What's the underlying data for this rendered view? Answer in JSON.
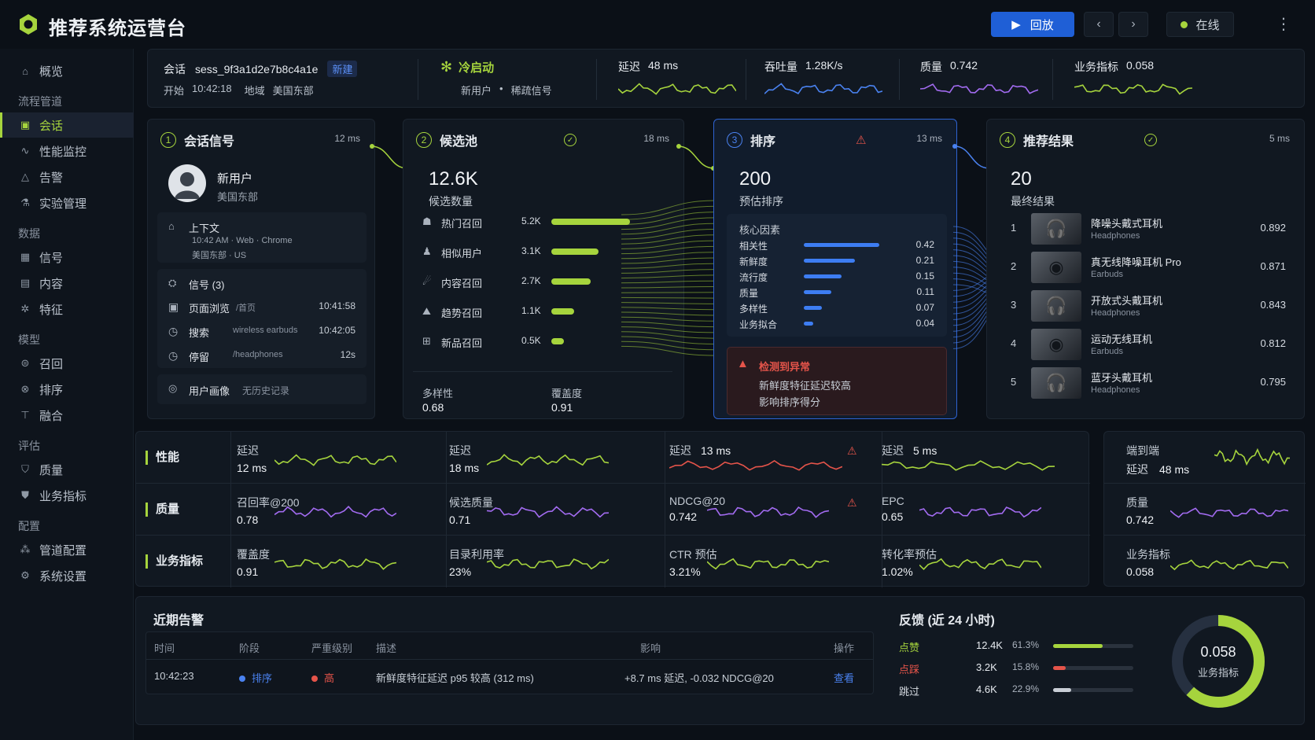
{
  "app": {
    "title": "推荐系统运营台"
  },
  "topbar": {
    "replay_label": "回放",
    "status_label": "在线",
    "status_color": "#a6d43d"
  },
  "sidebar": {
    "items_top": [
      {
        "label": "概览",
        "icon": "home-icon"
      }
    ],
    "groups": [
      {
        "title": "流程管道",
        "items": [
          {
            "label": "会话",
            "icon": "session-icon",
            "active": true
          },
          {
            "label": "性能监控",
            "icon": "pulse-icon"
          },
          {
            "label": "告警",
            "icon": "warning-icon"
          },
          {
            "label": "实验管理",
            "icon": "flask-icon"
          }
        ]
      },
      {
        "title": "数据",
        "items": [
          {
            "label": "信号",
            "icon": "signal-icon"
          },
          {
            "label": "内容",
            "icon": "document-icon"
          },
          {
            "label": "特征",
            "icon": "feature-icon"
          }
        ]
      },
      {
        "title": "模型",
        "items": [
          {
            "label": "召回",
            "icon": "recall-icon"
          },
          {
            "label": "排序",
            "icon": "sort-icon"
          },
          {
            "label": "融合",
            "icon": "merge-icon"
          }
        ]
      },
      {
        "title": "评估",
        "items": [
          {
            "label": "质量",
            "icon": "shield-icon"
          },
          {
            "label": "业务指标",
            "icon": "badge-icon"
          }
        ]
      },
      {
        "title": "配置",
        "items": [
          {
            "label": "管道配置",
            "icon": "pipeline-icon"
          },
          {
            "label": "系统设置",
            "icon": "gear-icon"
          }
        ]
      }
    ]
  },
  "session": {
    "label": "会话",
    "id": "sess_9f3a1d2e7b8c4a1e",
    "new_chip": "新建",
    "start_label": "开始",
    "start_time": "10:42:18",
    "region_label": "地域",
    "region": "美国东部",
    "mode_title": "冷启动",
    "mode_sub1": "新用户",
    "mode_sub2": "稀疏信号",
    "kpis": [
      {
        "label": "延迟",
        "value": "48 ms",
        "color": "#a6d43d"
      },
      {
        "label": "吞吐量",
        "value": "1.28K/s",
        "color": "#4a82f0"
      },
      {
        "label": "质量",
        "value": "0.742",
        "color": "#a26bf0"
      },
      {
        "label": "业务指标",
        "value": "0.058",
        "color": "#a6d43d"
      }
    ]
  },
  "stages": {
    "signal": {
      "num": "1",
      "title": "会话信号",
      "ms": "12 ms",
      "user_name": "新用户",
      "user_region": "美国东部",
      "context_title": "上下文",
      "context_line1": "10:42 AM · Web · Chrome",
      "context_line2": "美国东部 · US",
      "signals_title": "信号 (3)",
      "signals": [
        {
          "name": "页面浏览",
          "detail": "/首页",
          "time": "10:41:58",
          "icon": "page-icon"
        },
        {
          "name": "搜索",
          "detail": "wireless earbuds",
          "time": "10:42:05",
          "icon": "clock-icon"
        },
        {
          "name": "停留",
          "detail": "/headphones",
          "time": "12s",
          "icon": "clock-icon"
        }
      ],
      "profile_label": "用户画像",
      "profile_value": "无历史记录"
    },
    "candidates": {
      "num": "2",
      "title": "候选池",
      "ms": "18 ms",
      "count": "12.6K",
      "count_label": "候选数量",
      "sources": [
        {
          "name": "热门召回",
          "value": "5.2K",
          "ratio": 1.0
        },
        {
          "name": "相似用户",
          "value": "3.1K",
          "ratio": 0.6
        },
        {
          "name": "内容召回",
          "value": "2.7K",
          "ratio": 0.5
        },
        {
          "name": "趋势召回",
          "value": "1.1K",
          "ratio": 0.29
        },
        {
          "name": "新品召回",
          "value": "0.5K",
          "ratio": 0.16
        }
      ],
      "diversity_label": "多样性",
      "diversity": "0.68",
      "coverage_label": "覆盖度",
      "coverage": "0.91"
    },
    "ranking": {
      "num": "3",
      "title": "排序",
      "ms": "13 ms",
      "count": "200",
      "count_label": "预估排序",
      "factors_title": "核心因素",
      "factors": [
        {
          "name": "相关性",
          "value": "0.42",
          "ratio": 1.0
        },
        {
          "name": "新鲜度",
          "value": "0.21",
          "ratio": 0.68
        },
        {
          "name": "流行度",
          "value": "0.15",
          "ratio": 0.5
        },
        {
          "name": "质量",
          "value": "0.11",
          "ratio": 0.36
        },
        {
          "name": "多样性",
          "value": "0.07",
          "ratio": 0.24
        },
        {
          "name": "业务拟合",
          "value": "0.04",
          "ratio": 0.12
        }
      ],
      "anomaly_title": "检测到异常",
      "anomaly_line1": "新鲜度特征延迟较高",
      "anomaly_line2": "影响排序得分"
    },
    "results": {
      "num": "4",
      "title": "推荐结果",
      "ms": "5 ms",
      "count": "20",
      "count_label": "最终结果",
      "items": [
        {
          "rank": "1",
          "name": "降噪头戴式耳机",
          "cat": "Headphones",
          "score": "0.892"
        },
        {
          "rank": "2",
          "name": "真无线降噪耳机 Pro",
          "cat": "Earbuds",
          "score": "0.871"
        },
        {
          "rank": "3",
          "name": "开放式头戴耳机",
          "cat": "Headphones",
          "score": "0.843"
        },
        {
          "rank": "4",
          "name": "运动无线耳机",
          "cat": "Earbuds",
          "score": "0.812"
        },
        {
          "rank": "5",
          "name": "蓝牙头戴耳机",
          "cat": "Headphones",
          "score": "0.795"
        }
      ]
    }
  },
  "metrics": {
    "rows": [
      {
        "label": "性能",
        "cells": [
          {
            "label": "延迟",
            "value": "12 ms",
            "color": "#a6d43d"
          },
          {
            "label": "延迟",
            "value": "18 ms",
            "color": "#a6d43d"
          },
          {
            "label": "延迟",
            "value": "13 ms",
            "color": "#e5544a",
            "warn": true,
            "inline": true
          },
          {
            "label": "延迟",
            "value": "5 ms",
            "color": "#a6d43d",
            "inline": true
          }
        ]
      },
      {
        "label": "质量",
        "cells": [
          {
            "label": "召回率@200",
            "value": "0.78",
            "color": "#a26bf0"
          },
          {
            "label": "候选质量",
            "value": "0.71",
            "color": "#a26bf0"
          },
          {
            "label": "NDCG@20",
            "value": "0.742",
            "color": "#a26bf0",
            "warn": true
          },
          {
            "label": "EPC",
            "value": "0.65",
            "color": "#a26bf0"
          }
        ]
      },
      {
        "label": "业务指标",
        "cells": [
          {
            "label": "覆盖度",
            "value": "0.91",
            "color": "#a6d43d"
          },
          {
            "label": "目录利用率",
            "value": "23%",
            "color": "#a6d43d"
          },
          {
            "label": "CTR 预估",
            "value": "3.21%",
            "color": "#a6d43d"
          },
          {
            "label": "转化率预估",
            "value": "1.02%",
            "color": "#a6d43d"
          }
        ]
      }
    ],
    "summary": [
      {
        "label": "端到端",
        "label2": "延迟",
        "value": "48 ms",
        "color": "#a6d43d"
      },
      {
        "label": "质量",
        "value": "0.742",
        "color": "#a26bf0"
      },
      {
        "label": "业务指标",
        "value": "0.058",
        "color": "#a6d43d"
      }
    ]
  },
  "alerts": {
    "title": "近期告警",
    "columns": [
      "时间",
      "阶段",
      "严重级别",
      "描述",
      "影响",
      "操作"
    ],
    "rows": [
      {
        "time": "10:42:23",
        "stage": "排序",
        "severity": "高",
        "desc": "新鲜度特征延迟 p95 较高 (312 ms)",
        "impact": "+8.7 ms 延迟, -0.032 NDCG@20",
        "action": "查看"
      }
    ]
  },
  "feedback": {
    "title": "反馈 (近 24 小时)",
    "rows": [
      {
        "label": "点赞",
        "count": "12.4K",
        "pct": "61.3%",
        "ratio": 0.613,
        "color": "#a6d43d"
      },
      {
        "label": "点踩",
        "count": "3.2K",
        "pct": "15.8%",
        "ratio": 0.158,
        "color": "#e5544a"
      },
      {
        "label": "跳过",
        "count": "4.6K",
        "pct": "22.9%",
        "ratio": 0.229,
        "color": "#c9ced6"
      }
    ],
    "donut_value": "0.058",
    "donut_label": "业务指标",
    "donut_ratio": 0.62
  }
}
